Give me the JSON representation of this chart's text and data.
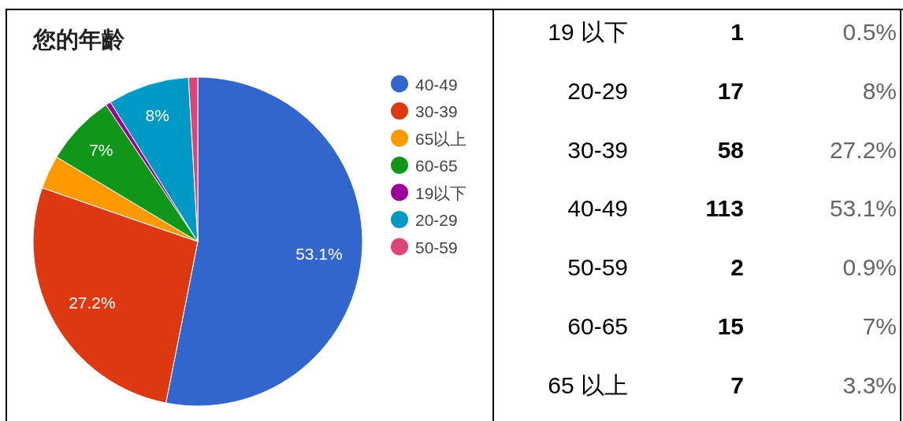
{
  "chart_data": [
    {
      "type": "pie",
      "title": "您的年齡",
      "categories": [
        "40-49",
        "30-39",
        "65以上",
        "60-65",
        "19以下",
        "20-29",
        "50-59"
      ],
      "values": [
        53.1,
        27.2,
        3.3,
        7,
        0.5,
        8,
        0.9
      ],
      "colors": [
        "#3366cc",
        "#dc3912",
        "#ff9900",
        "#109618",
        "#990099",
        "#0099c6",
        "#dd4477"
      ],
      "value_labels": [
        "53.1%",
        "27.2%",
        null,
        "7%",
        null,
        "8%",
        null
      ],
      "legend": "right"
    },
    {
      "type": "other",
      "categories": [
        "19 以下",
        "20-29",
        "30-39",
        "40-49",
        "50-59",
        "60-65",
        "65 以上"
      ],
      "data_labels": true,
      "series": [
        {
          "color": "#000000",
          "values": [
            1,
            17,
            58,
            113,
            2,
            15,
            7
          ]
        },
        {
          "color": "#666666",
          "values": [
            0.5,
            8,
            27.2,
            53.1,
            0.9,
            7,
            3.3
          ],
          "value_labels": [
            "0.5%",
            "8%",
            "27.2%",
            "53.1%",
            "0.9%",
            "7%",
            "3.3%"
          ]
        }
      ]
    }
  ]
}
